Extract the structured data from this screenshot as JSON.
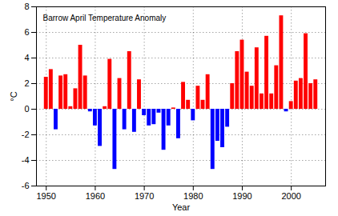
{
  "chart_data": {
    "type": "bar",
    "title": "Barrow April Temperature Anomaly",
    "x_label": "Year",
    "y_label": "°C",
    "x": [
      1950,
      1951,
      1952,
      1953,
      1954,
      1955,
      1956,
      1957,
      1958,
      1959,
      1960,
      1961,
      1962,
      1963,
      1964,
      1965,
      1966,
      1967,
      1968,
      1969,
      1970,
      1971,
      1972,
      1973,
      1974,
      1975,
      1976,
      1977,
      1978,
      1979,
      1980,
      1981,
      1982,
      1983,
      1984,
      1985,
      1986,
      1987,
      1988,
      1989,
      1990,
      1991,
      1992,
      1993,
      1994,
      1995,
      1996,
      1997,
      1998,
      1999,
      2000,
      2001,
      2002,
      2003,
      2004,
      2005
    ],
    "values": [
      2.5,
      3.1,
      -1.6,
      2.6,
      2.7,
      0.2,
      1.6,
      5.0,
      2.6,
      -0.2,
      -1.3,
      -2.9,
      0.2,
      3.9,
      -4.7,
      2.4,
      -1.6,
      4.5,
      -1.8,
      2.3,
      -0.5,
      -1.3,
      -1.2,
      -0.3,
      -3.2,
      -1.3,
      0.1,
      -2.3,
      2.1,
      0.7,
      -0.9,
      1.8,
      0.7,
      2.7,
      -4.7,
      -2.5,
      -3.0,
      -1.4,
      2.0,
      4.5,
      5.4,
      2.9,
      1.8,
      4.8,
      1.2,
      5.7,
      1.2,
      3.4,
      7.3,
      -0.2,
      0.6,
      2.2,
      2.4,
      5.9,
      2.0,
      2.3
    ],
    "colors": [
      "#ff0000",
      "#ff0000",
      "#0000ff",
      "#ff0000",
      "#ff0000",
      "#ff0000",
      "#ff0000",
      "#ff0000",
      "#ff0000",
      "#0000ff",
      "#0000ff",
      "#0000ff",
      "#ff0000",
      "#ff0000",
      "#0000ff",
      "#ff0000",
      "#0000ff",
      "#ff0000",
      "#0000ff",
      "#ff0000",
      "#0000ff",
      "#0000ff",
      "#0000ff",
      "#0000ff",
      "#0000ff",
      "#0000ff",
      "#ff0000",
      "#0000ff",
      "#ff0000",
      "#ff0000",
      "#0000ff",
      "#ff0000",
      "#ff0000",
      "#ff0000",
      "#0000ff",
      "#0000ff",
      "#0000ff",
      "#0000ff",
      "#ff0000",
      "#ff0000",
      "#ff0000",
      "#ff0000",
      "#ff0000",
      "#ff0000",
      "#ff0000",
      "#ff0000",
      "#ff0000",
      "#ff0000",
      "#ff0000",
      "#0000ff",
      "#ff0000",
      "#ff0000",
      "#ff0000",
      "#ff0000",
      "#ff0000",
      "#ff0000"
    ],
    "xlim": [
      1948,
      2007
    ],
    "xticks": [
      1950,
      1960,
      1970,
      1980,
      1990,
      2000
    ],
    "ylim": [
      -6,
      8
    ],
    "yticks": [
      -6,
      -4,
      -2,
      0,
      2,
      4,
      6,
      8
    ],
    "grid": true
  }
}
